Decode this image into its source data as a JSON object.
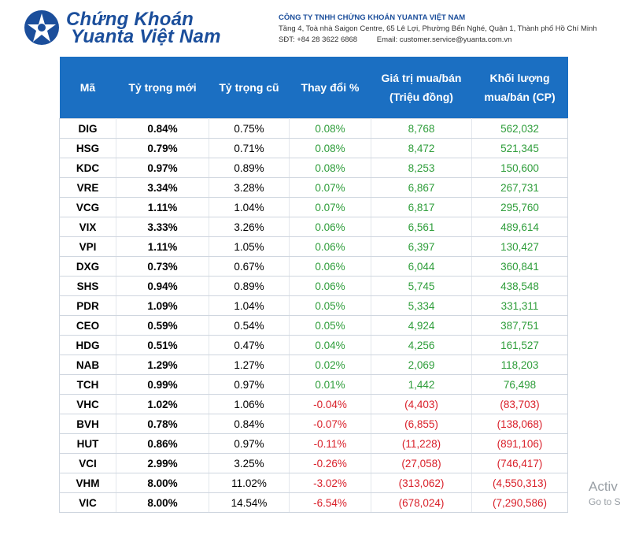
{
  "header": {
    "brand_line1": "Chứng Khoán",
    "brand_line2": "Yuanta Việt Nam",
    "company_name": "CÔNG TY TNHH CHỨNG KHOÁN YUANTA VIỆT NAM",
    "address": "Tầng 4, Toà nhà Saigon Centre, 65 Lê Lợi, Phường Bến Nghé, Quận 1, Thành phố Hồ Chí Minh",
    "phone": "SĐT: +84 28 3622 6868",
    "email": "Email: customer.service@yuanta.com.vn",
    "brand_color": "#1b4e9b"
  },
  "table": {
    "header_color": "#1b6fc2",
    "positive_color": "#2e9d3a",
    "negative_color": "#d9202a",
    "columns": {
      "symbol": "Mã",
      "new_weight": "Tỷ trọng mới",
      "old_weight": "Tỷ trọng cũ",
      "change": "Thay đổi %",
      "value_l1": "Giá trị mua/bán",
      "value_l2": "(Triệu đồng)",
      "volume_l1": "Khối lượng",
      "volume_l2": "mua/bán (CP)"
    },
    "rows": [
      {
        "symbol": "DIG",
        "new_weight": "0.84%",
        "old_weight": "0.75%",
        "change": "0.08%",
        "value": "8,768",
        "volume": "562,032",
        "direction": "pos"
      },
      {
        "symbol": "HSG",
        "new_weight": "0.79%",
        "old_weight": "0.71%",
        "change": "0.08%",
        "value": "8,472",
        "volume": "521,345",
        "direction": "pos"
      },
      {
        "symbol": "KDC",
        "new_weight": "0.97%",
        "old_weight": "0.89%",
        "change": "0.08%",
        "value": "8,253",
        "volume": "150,600",
        "direction": "pos"
      },
      {
        "symbol": "VRE",
        "new_weight": "3.34%",
        "old_weight": "3.28%",
        "change": "0.07%",
        "value": "6,867",
        "volume": "267,731",
        "direction": "pos"
      },
      {
        "symbol": "VCG",
        "new_weight": "1.11%",
        "old_weight": "1.04%",
        "change": "0.07%",
        "value": "6,817",
        "volume": "295,760",
        "direction": "pos"
      },
      {
        "symbol": "VIX",
        "new_weight": "3.33%",
        "old_weight": "3.26%",
        "change": "0.06%",
        "value": "6,561",
        "volume": "489,614",
        "direction": "pos"
      },
      {
        "symbol": "VPI",
        "new_weight": "1.11%",
        "old_weight": "1.05%",
        "change": "0.06%",
        "value": "6,397",
        "volume": "130,427",
        "direction": "pos"
      },
      {
        "symbol": "DXG",
        "new_weight": "0.73%",
        "old_weight": "0.67%",
        "change": "0.06%",
        "value": "6,044",
        "volume": "360,841",
        "direction": "pos"
      },
      {
        "symbol": "SHS",
        "new_weight": "0.94%",
        "old_weight": "0.89%",
        "change": "0.06%",
        "value": "5,745",
        "volume": "438,548",
        "direction": "pos"
      },
      {
        "symbol": "PDR",
        "new_weight": "1.09%",
        "old_weight": "1.04%",
        "change": "0.05%",
        "value": "5,334",
        "volume": "331,311",
        "direction": "pos"
      },
      {
        "symbol": "CEO",
        "new_weight": "0.59%",
        "old_weight": "0.54%",
        "change": "0.05%",
        "value": "4,924",
        "volume": "387,751",
        "direction": "pos"
      },
      {
        "symbol": "HDG",
        "new_weight": "0.51%",
        "old_weight": "0.47%",
        "change": "0.04%",
        "value": "4,256",
        "volume": "161,527",
        "direction": "pos"
      },
      {
        "symbol": "NAB",
        "new_weight": "1.29%",
        "old_weight": "1.27%",
        "change": "0.02%",
        "value": "2,069",
        "volume": "118,203",
        "direction": "pos"
      },
      {
        "symbol": "TCH",
        "new_weight": "0.99%",
        "old_weight": "0.97%",
        "change": "0.01%",
        "value": "1,442",
        "volume": "76,498",
        "direction": "pos"
      },
      {
        "symbol": "VHC",
        "new_weight": "1.02%",
        "old_weight": "1.06%",
        "change": "-0.04%",
        "value": "(4,403)",
        "volume": "(83,703)",
        "direction": "neg"
      },
      {
        "symbol": "BVH",
        "new_weight": "0.78%",
        "old_weight": "0.84%",
        "change": "-0.07%",
        "value": "(6,855)",
        "volume": "(138,068)",
        "direction": "neg"
      },
      {
        "symbol": "HUT",
        "new_weight": "0.86%",
        "old_weight": "0.97%",
        "change": "-0.11%",
        "value": "(11,228)",
        "volume": "(891,106)",
        "direction": "neg"
      },
      {
        "symbol": "VCI",
        "new_weight": "2.99%",
        "old_weight": "3.25%",
        "change": "-0.26%",
        "value": "(27,058)",
        "volume": "(746,417)",
        "direction": "neg"
      },
      {
        "symbol": "VHM",
        "new_weight": "8.00%",
        "old_weight": "11.02%",
        "change": "-3.02%",
        "value": "(313,062)",
        "volume": "(4,550,313)",
        "direction": "neg"
      },
      {
        "symbol": "VIC",
        "new_weight": "8.00%",
        "old_weight": "14.54%",
        "change": "-6.54%",
        "value": "(678,024)",
        "volume": "(7,290,586)",
        "direction": "neg"
      }
    ]
  },
  "watermark": {
    "line1": "Activ",
    "line2": "Go to S"
  }
}
